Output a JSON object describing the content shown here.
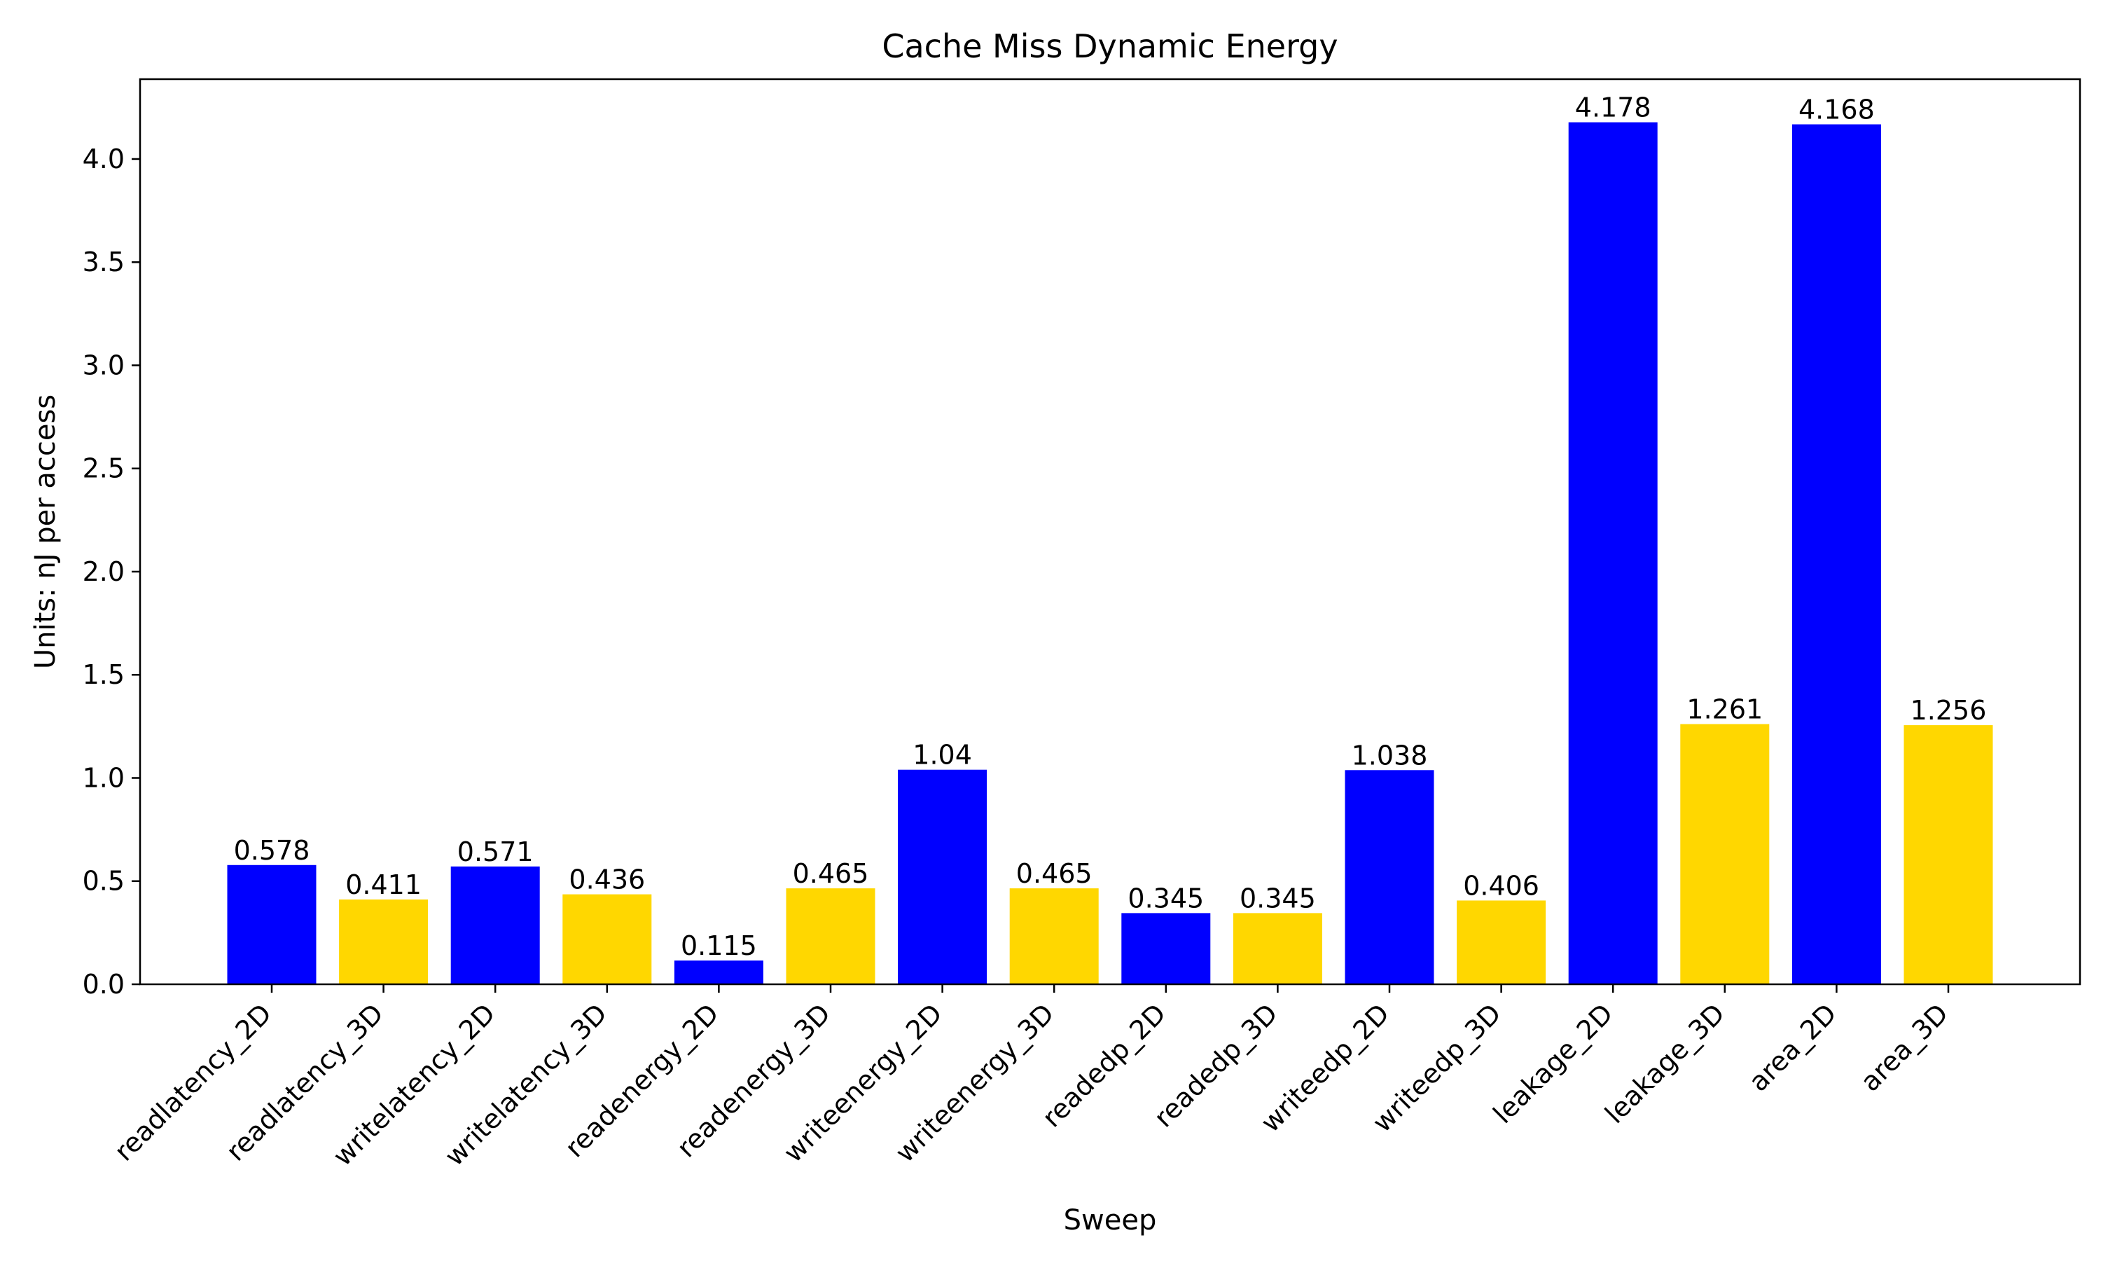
{
  "chart_data": {
    "type": "bar",
    "title": "Cache Miss Dynamic Energy",
    "xlabel": "Sweep",
    "ylabel": "Units: nJ per access",
    "categories": [
      "readlatency_2D",
      "readlatency_3D",
      "writelatency_2D",
      "writelatency_3D",
      "readenergy_2D",
      "readenergy_3D",
      "writeenergy_2D",
      "writeenergy_3D",
      "readedp_2D",
      "readedp_3D",
      "writeedp_2D",
      "writeedp_3D",
      "leakage_2D",
      "leakage_3D",
      "area_2D",
      "area_3D"
    ],
    "values": [
      0.578,
      0.411,
      0.571,
      0.436,
      0.115,
      0.465,
      1.04,
      0.465,
      0.345,
      0.345,
      1.038,
      0.406,
      4.178,
      1.261,
      4.168,
      1.256
    ],
    "value_labels": [
      "0.578",
      "0.411",
      "0.571",
      "0.436",
      "0.115",
      "0.465",
      "1.04",
      "0.465",
      "0.345",
      "0.345",
      "1.038",
      "0.406",
      "4.178",
      "1.261",
      "4.168",
      "1.256"
    ],
    "bar_colors": [
      "#0000FF",
      "#FFD700",
      "#0000FF",
      "#FFD700",
      "#0000FF",
      "#FFD700",
      "#0000FF",
      "#FFD700",
      "#0000FF",
      "#FFD700",
      "#0000FF",
      "#FFD700",
      "#0000FF",
      "#FFD700",
      "#0000FF",
      "#FFD700"
    ],
    "ylim": [
      0,
      4.387
    ],
    "yticks": [
      "0.0",
      "0.5",
      "1.0",
      "1.5",
      "2.0",
      "2.5",
      "3.0",
      "3.5",
      "4.0"
    ],
    "grid": false,
    "legend": "none"
  }
}
